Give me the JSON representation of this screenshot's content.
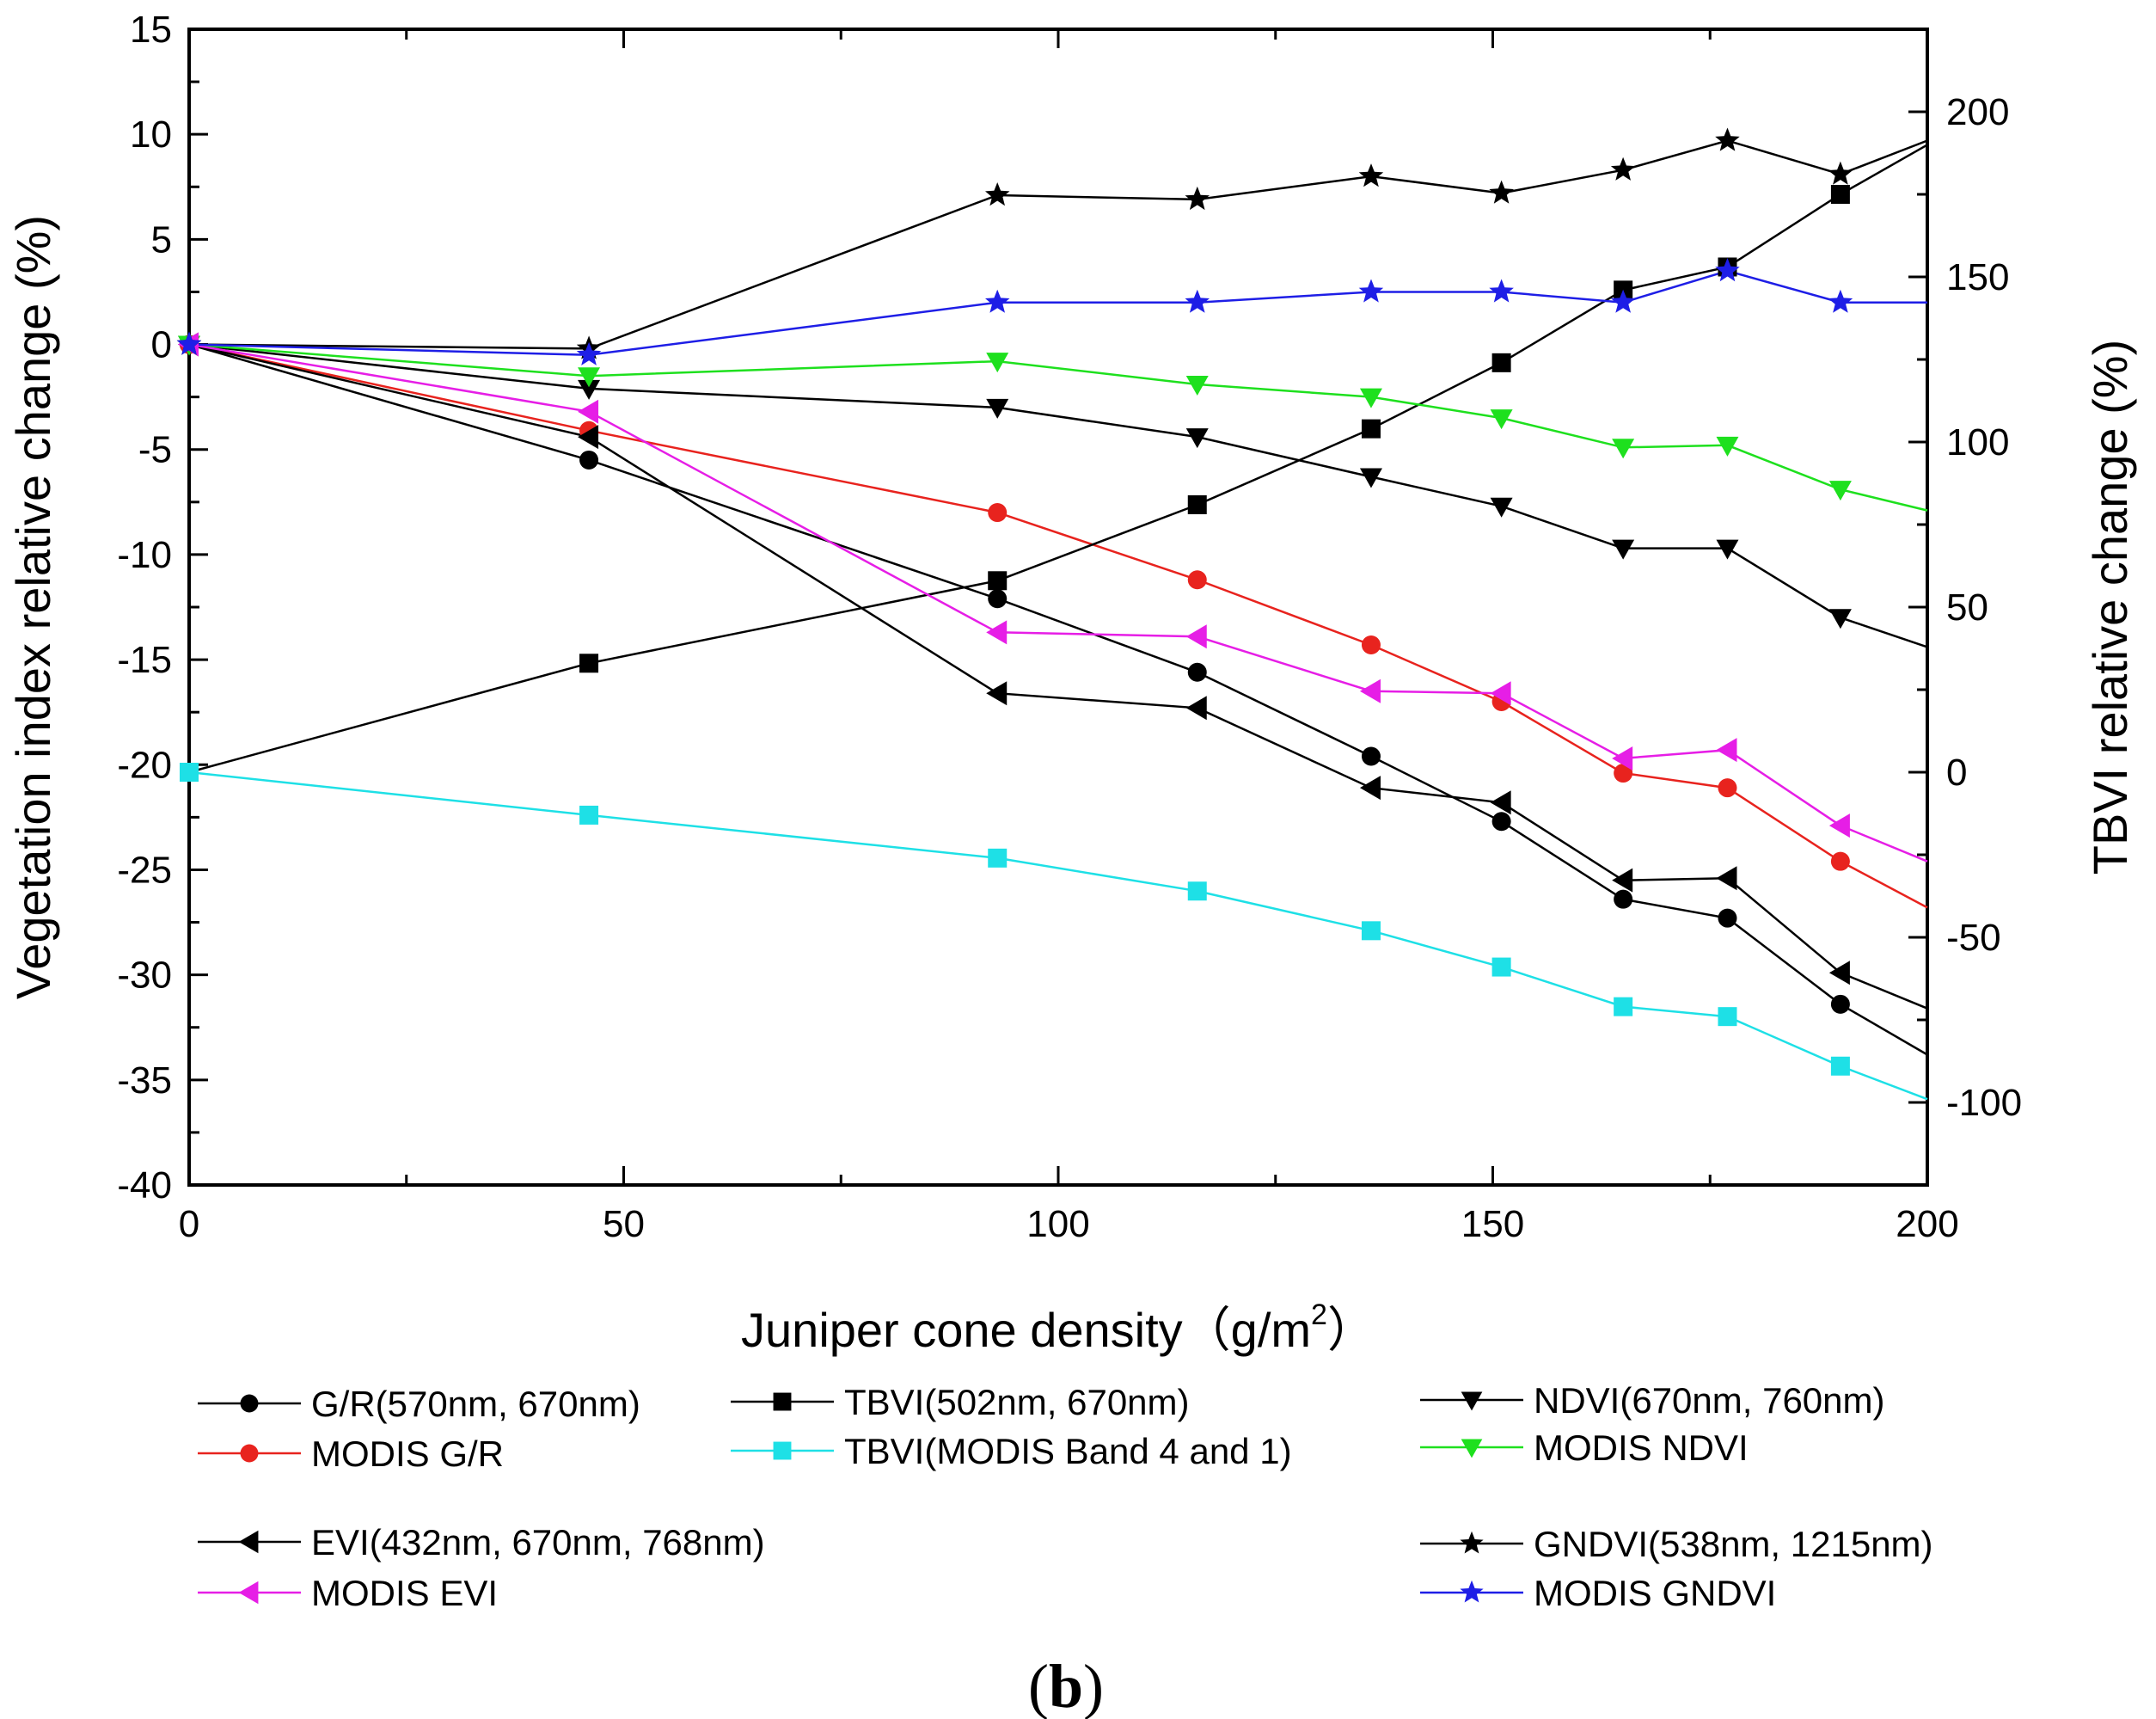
{
  "chart_data": {
    "type": "line",
    "x_label": "Juniper cone density（g/m",
    "x_label_sup": "2",
    "x_label_end": "）",
    "y_label_left": "Vegetation index relative change (%)",
    "y_label_right": "TBVI relative change (%)",
    "panel_label_open": "(",
    "panel_label_letter": "b",
    "panel_label_close": ")",
    "x_range": [
      0,
      200
    ],
    "y_left_range": [
      -40,
      15
    ],
    "y_right_range": [
      -125,
      225
    ],
    "x_ticks": [
      "0",
      "50",
      "100",
      "150",
      "200"
    ],
    "y_left_ticks": [
      "15",
      "10",
      "5",
      "0",
      "-5",
      "-10",
      "-15",
      "-20",
      "-25",
      "-30",
      "-35",
      "-40"
    ],
    "y_right_ticks": [
      "200",
      "150",
      "100",
      "50",
      "0",
      "-50",
      "-100"
    ],
    "series": [
      {
        "name": "G/R(570nm, 670nm)",
        "axis": "left",
        "color": "#000000",
        "marker": "circle",
        "x": [
          0,
          46,
          93,
          116,
          136,
          151,
          165,
          177,
          190,
          200
        ],
        "y": [
          0,
          -5.5,
          -12.1,
          -15.6,
          -19.6,
          -22.7,
          -26.4,
          -27.3,
          -31.4,
          -33.8
        ]
      },
      {
        "name": "MODIS G/R",
        "axis": "left",
        "color": "#e8231e",
        "marker": "circle",
        "x": [
          0,
          46,
          93,
          116,
          136,
          151,
          165,
          177,
          190,
          200
        ],
        "y": [
          0,
          -4.1,
          -8.0,
          -11.2,
          -14.3,
          -17.0,
          -20.4,
          -21.1,
          -24.6,
          -26.8
        ]
      },
      {
        "name": "TBVI(502nm, 670nm)",
        "axis": "right",
        "color": "#000000",
        "marker": "square",
        "x": [
          0,
          46,
          93,
          116,
          136,
          151,
          165,
          177,
          190,
          200
        ],
        "y": [
          0,
          33,
          58,
          81,
          104,
          124,
          146,
          153,
          175,
          190
        ]
      },
      {
        "name": "TBVI(MODIS Band 4 and 1)",
        "axis": "right",
        "color": "#1ee0e6",
        "marker": "square",
        "x": [
          0,
          46,
          93,
          116,
          136,
          151,
          165,
          177,
          190,
          200
        ],
        "y": [
          0,
          -13,
          -26,
          -36,
          -48,
          -59,
          -71,
          -74,
          -89,
          -99
        ]
      },
      {
        "name": "NDVI(670nm, 760nm)",
        "axis": "left",
        "color": "#000000",
        "marker": "triangle-down",
        "x": [
          0,
          46,
          93,
          116,
          136,
          151,
          165,
          177,
          190,
          200
        ],
        "y": [
          0,
          -2.1,
          -3.0,
          -4.4,
          -6.3,
          -7.7,
          -9.7,
          -9.7,
          -13.0,
          -14.4
        ]
      },
      {
        "name": "MODIS NDVI",
        "axis": "left",
        "color": "#1ee01e",
        "marker": "triangle-down",
        "x": [
          0,
          46,
          93,
          116,
          136,
          151,
          165,
          177,
          190,
          200
        ],
        "y": [
          0,
          -1.5,
          -0.8,
          -1.9,
          -2.5,
          -3.5,
          -4.9,
          -4.8,
          -6.9,
          -7.9
        ]
      },
      {
        "name": "EVI(432nm, 670nm, 768nm)",
        "axis": "left",
        "color": "#000000",
        "marker": "triangle-left",
        "x": [
          0,
          46,
          93,
          116,
          136,
          151,
          165,
          177,
          190,
          200
        ],
        "y": [
          0,
          -4.4,
          -16.6,
          -17.3,
          -21.1,
          -21.8,
          -25.5,
          -25.4,
          -29.9,
          -31.6
        ]
      },
      {
        "name": "MODIS EVI",
        "axis": "left",
        "color": "#e61ee6",
        "marker": "triangle-left",
        "x": [
          0,
          46,
          93,
          116,
          136,
          151,
          165,
          177,
          190,
          200
        ],
        "y": [
          0,
          -3.2,
          -13.7,
          -13.9,
          -16.5,
          -16.6,
          -19.7,
          -19.3,
          -22.9,
          -24.6
        ]
      },
      {
        "name": "GNDVI(538nm, 1215nm)",
        "axis": "left",
        "color": "#000000",
        "marker": "star",
        "x": [
          0,
          46,
          93,
          116,
          136,
          151,
          165,
          177,
          190,
          200
        ],
        "y": [
          0,
          -0.2,
          7.1,
          6.9,
          8.0,
          7.2,
          8.3,
          9.7,
          8.1,
          9.7
        ]
      },
      {
        "name": "MODIS GNDVI",
        "axis": "left",
        "color": "#1e1ee6",
        "marker": "star",
        "x": [
          0,
          46,
          93,
          116,
          136,
          151,
          165,
          177,
          190,
          200
        ],
        "y": [
          0,
          -0.5,
          2.0,
          2.0,
          2.5,
          2.5,
          2.0,
          3.5,
          2.0,
          2.0
        ]
      }
    ]
  }
}
